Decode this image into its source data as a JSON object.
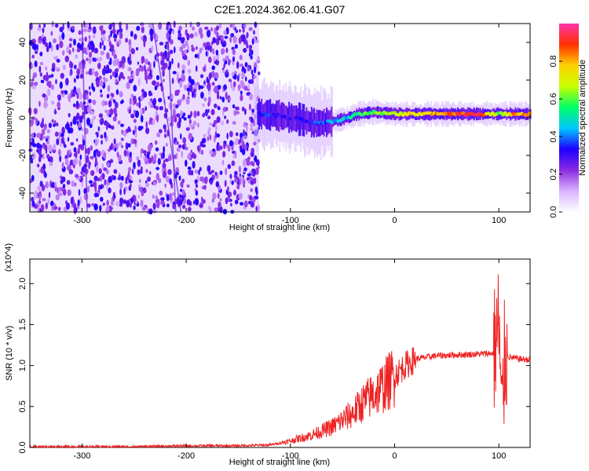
{
  "title": "C2E1.2024.362.06.41.G07",
  "chart_data": [
    {
      "type": "heatmap",
      "xlabel": "Height of straight line (km)",
      "ylabel": "Frequency (Hz)",
      "xlim": [
        -350,
        130
      ],
      "ylim": [
        -50,
        50
      ],
      "xticks": [
        -300,
        -200,
        -100,
        0,
        100
      ],
      "yticks": [
        -40,
        -20,
        0,
        20,
        40
      ],
      "colorbar": {
        "label": "Normalized spectral amplitude",
        "range": [
          0,
          1
        ],
        "ticks": [
          "0.0",
          "0.2",
          "0.4",
          "0.6",
          "0.8"
        ],
        "tick_values": [
          0.0,
          0.2,
          0.4,
          0.6,
          0.8
        ],
        "colors": [
          "#ffffff",
          "#d9b3ff",
          "#8a2be2",
          "#1e00ff",
          "#00c8ff",
          "#00ff66",
          "#c8ff00",
          "#ffd000",
          "#ff3000",
          "#ff33aa"
        ]
      },
      "noise_region_x": [
        -350,
        -130
      ],
      "signal_track": [
        {
          "x": -130,
          "f": 2,
          "amp": 0.35
        },
        {
          "x": -110,
          "f": 1,
          "amp": 0.3
        },
        {
          "x": -90,
          "f": -1,
          "amp": 0.3
        },
        {
          "x": -75,
          "f": -3,
          "amp": 0.35
        },
        {
          "x": -60,
          "f": -2,
          "amp": 0.4
        },
        {
          "x": -45,
          "f": 0,
          "amp": 0.45
        },
        {
          "x": -35,
          "f": 2,
          "amp": 0.55
        },
        {
          "x": -20,
          "f": 3,
          "amp": 0.6
        },
        {
          "x": 0,
          "f": 2,
          "amp": 0.7
        },
        {
          "x": 25,
          "f": 2,
          "amp": 0.75
        },
        {
          "x": 55,
          "f": 2,
          "amp": 0.85
        },
        {
          "x": 80,
          "f": 2,
          "amp": 0.95
        },
        {
          "x": 100,
          "f": 2,
          "amp": 0.6
        },
        {
          "x": 115,
          "f": 2,
          "amp": 0.85
        },
        {
          "x": 130,
          "f": 2,
          "amp": 0.8
        }
      ]
    },
    {
      "type": "line",
      "xlabel": "Height of straight line (km)",
      "ylabel": "SNR (10 * v/v)",
      "multiplier": "(x10^4)",
      "xlim": [
        -350,
        130
      ],
      "ylim": [
        0,
        2.3
      ],
      "xticks": [
        -300,
        -200,
        -100,
        0,
        100
      ],
      "yticks": [
        0.0,
        0.5,
        1.0,
        1.5,
        2.0
      ],
      "color": "#ee2222",
      "series": [
        {
          "x": [
            -350,
            -300,
            -250,
            -200,
            -150,
            -120,
            -100,
            -80,
            -60,
            -40,
            -30,
            -20,
            -10,
            0,
            10,
            20,
            40,
            60,
            80,
            95,
            100,
            103,
            106,
            110,
            120,
            130
          ],
          "y": [
            0.01,
            0.01,
            0.01,
            0.02,
            0.02,
            0.03,
            0.08,
            0.15,
            0.25,
            0.42,
            0.55,
            0.65,
            0.75,
            0.88,
            1.0,
            1.08,
            1.12,
            1.13,
            1.14,
            1.15,
            1.5,
            0.3,
            1.2,
            1.1,
            1.08,
            1.07
          ]
        }
      ]
    }
  ]
}
